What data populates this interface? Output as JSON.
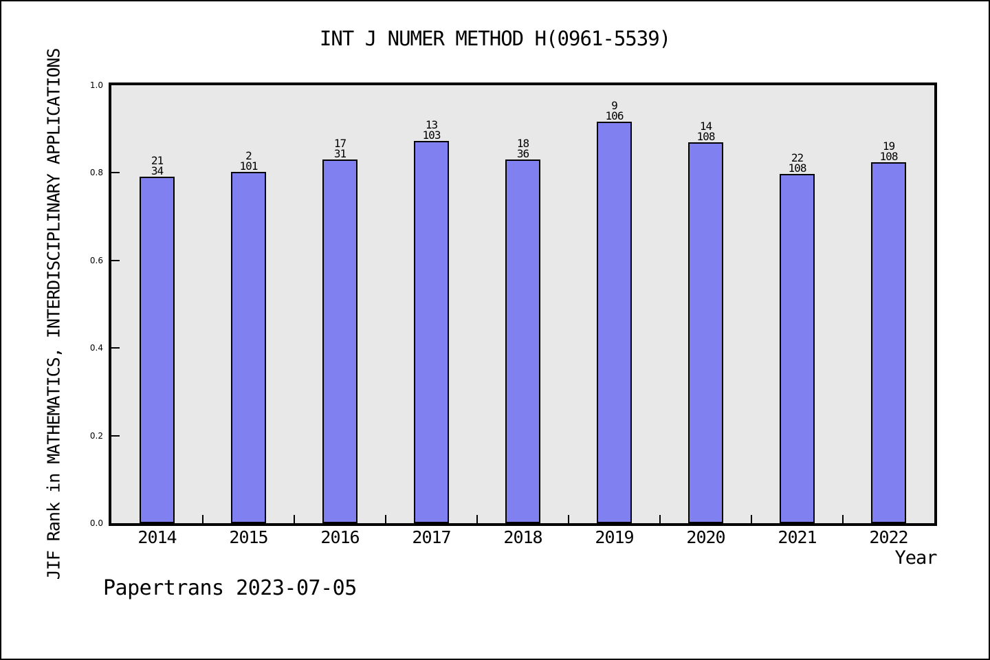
{
  "footer": "Papertrans 2023-07-05",
  "chart_data": {
    "type": "bar",
    "title": "INT J NUMER METHOD H(0961-5539)",
    "xlabel": "Year",
    "ylabel": "JIF Rank in MATHEMATICS, INTERDISCIPLINARY APPLICATIONS",
    "categories": [
      "2014",
      "2015",
      "2016",
      "2017",
      "2018",
      "2019",
      "2020",
      "2021",
      "2022"
    ],
    "values": [
      0.792,
      0.802,
      0.83,
      0.873,
      0.83,
      0.917,
      0.87,
      0.798,
      0.824
    ],
    "bar_labels": [
      {
        "rank": "21",
        "total": "34"
      },
      {
        "rank": "2",
        "total": "101"
      },
      {
        "rank": "17",
        "total": "31"
      },
      {
        "rank": "13",
        "total": "103"
      },
      {
        "rank": "18",
        "total": "36"
      },
      {
        "rank": "9",
        "total": "106"
      },
      {
        "rank": "14",
        "total": "108"
      },
      {
        "rank": "22",
        "total": "108"
      },
      {
        "rank": "19",
        "total": "108"
      }
    ],
    "ylim": [
      0.0,
      1.0
    ],
    "yticks": [
      0.0,
      0.2,
      0.4,
      0.6,
      0.8,
      1.0
    ],
    "ytick_labels": [
      "0.0",
      "0.2",
      "0.4",
      "0.6",
      "0.8",
      "1.0"
    ],
    "grid": false,
    "legend": null,
    "layout": {
      "tick_direction": "in",
      "x_minor_ticks": "between-categories"
    },
    "colors": {
      "bar_fill": "#8080F0",
      "bar_edge": "#000000",
      "plot_background": "#E8E8E8",
      "figure_background": "#FFFFFF",
      "text": "#000000"
    }
  }
}
